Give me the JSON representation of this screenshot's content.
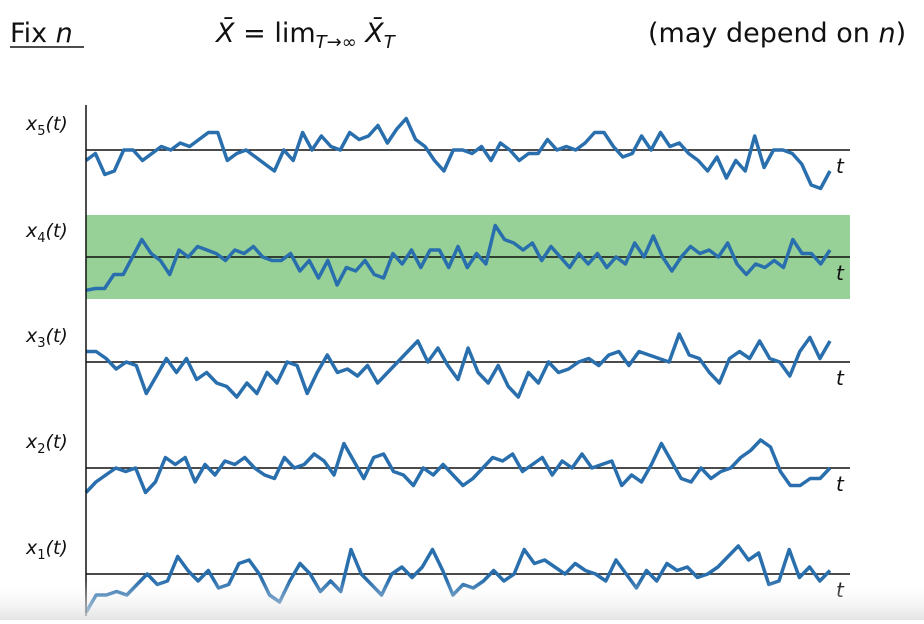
{
  "header": {
    "fix": {
      "word": "Fix",
      "var": "n"
    },
    "formula": {
      "lhs": "X̄",
      "eq": "=",
      "lim": "lim",
      "lim_sub": "T→∞",
      "rhs": "X̄",
      "rhs_sub": "T"
    },
    "note": {
      "before": "(may depend on ",
      "var": "n",
      "after": ")"
    }
  },
  "line_color": "#2a6fad",
  "highlight_color": "#97d197",
  "panels": [
    {
      "label": "x",
      "index": "5",
      "arg": "(t)",
      "axis": "t",
      "highlight": false,
      "values": [
        -0.3,
        -0.1,
        -0.7,
        -0.6,
        0,
        0,
        -0.3,
        -0.1,
        0.1,
        0,
        0.2,
        0.1,
        0.3,
        0.5,
        0.5,
        -0.3,
        -0.1,
        0,
        -0.2,
        -0.4,
        -0.6,
        0,
        -0.3,
        0.5,
        0,
        0.4,
        0.1,
        0,
        0.5,
        0.3,
        0.4,
        0.7,
        0.2,
        0.6,
        0.9,
        0.3,
        0.1,
        -0.3,
        -0.6,
        0,
        0,
        -0.1,
        0.1,
        -0.3,
        0.2,
        0,
        -0.3,
        -0.1,
        -0.1,
        0.3,
        0,
        0.1,
        0,
        0.2,
        0.5,
        0.5,
        0.1,
        -0.2,
        -0.1,
        0.4,
        0,
        0.5,
        0.1,
        0.2,
        -0.1,
        -0.3,
        -0.6,
        -0.2,
        -0.8,
        -0.3,
        -0.6,
        0.4,
        -0.5,
        0,
        0,
        -0.1,
        -0.4,
        -1,
        -1.1,
        -0.6
      ]
    },
    {
      "label": "x",
      "index": "4",
      "arg": "(t)",
      "axis": "t",
      "highlight": true,
      "values": [
        -0.95,
        -0.9,
        -0.9,
        -0.5,
        -0.5,
        0,
        0.5,
        0.1,
        -0.1,
        -0.5,
        0.2,
        0,
        0.3,
        0.2,
        0.1,
        -0.1,
        0.2,
        0.1,
        0.3,
        0,
        -0.1,
        -0.1,
        0.1,
        -0.4,
        -0.1,
        -0.6,
        -0.1,
        -0.8,
        -0.3,
        -0.4,
        -0.1,
        -0.5,
        -0.6,
        0.1,
        -0.2,
        0.2,
        -0.3,
        0.2,
        0.2,
        -0.3,
        0.3,
        -0.3,
        0.1,
        -0.2,
        0.9,
        0.5,
        0.4,
        0.2,
        0.4,
        -0.1,
        0.3,
        0,
        -0.3,
        0.1,
        -0.2,
        0.1,
        -0.3,
        0,
        -0.2,
        0.4,
        0,
        0.6,
        0,
        -0.4,
        0,
        0.3,
        0.1,
        0.2,
        0,
        0.4,
        -0.2,
        -0.5,
        -0.2,
        -0.3,
        -0.1,
        -0.3,
        0.5,
        0.1,
        0.1,
        -0.2,
        0.2
      ]
    },
    {
      "label": "x",
      "index": "3",
      "arg": "(t)",
      "axis": "t",
      "highlight": false,
      "values": [
        0.3,
        0.3,
        0.1,
        -0.2,
        0,
        -0.1,
        -0.9,
        -0.4,
        0.1,
        -0.3,
        0.1,
        -0.5,
        -0.3,
        -0.6,
        -0.7,
        -1,
        -0.6,
        -0.9,
        -0.3,
        -0.6,
        0,
        -0.1,
        -0.9,
        -0.3,
        0.2,
        -0.3,
        -0.2,
        -0.4,
        -0.1,
        -0.6,
        -0.3,
        0,
        0.3,
        0.6,
        0,
        0.4,
        -0.1,
        -0.5,
        0.4,
        -0.3,
        -0.6,
        -0.1,
        -0.7,
        -1,
        -0.3,
        -0.6,
        0,
        -0.3,
        -0.2,
        0,
        0.1,
        -0.1,
        0.2,
        0.3,
        -0.1,
        0.3,
        0.2,
        0.1,
        0,
        0.8,
        0.2,
        0.1,
        -0.3,
        -0.6,
        0.1,
        0.3,
        0.1,
        0.6,
        0.1,
        0,
        -0.4,
        0.3,
        0.7,
        0.1,
        0.6
      ]
    },
    {
      "label": "x",
      "index": "2",
      "arg": "(t)",
      "axis": "t",
      "highlight": false,
      "values": [
        -0.7,
        -0.4,
        -0.2,
        0,
        -0.1,
        0,
        -0.7,
        -0.4,
        0.3,
        0.1,
        0.3,
        -0.4,
        0.1,
        -0.2,
        0.2,
        0.1,
        0.3,
        0,
        -0.2,
        -0.3,
        0.3,
        0,
        0.1,
        0.4,
        0.2,
        -0.2,
        0.7,
        0.2,
        -0.3,
        0.3,
        0.4,
        -0.1,
        -0.2,
        -0.5,
        0,
        -0.2,
        0.1,
        -0.2,
        -0.5,
        -0.3,
        0,
        0.3,
        0.2,
        0.4,
        -0.1,
        0.1,
        0.3,
        -0.2,
        0.2,
        0,
        0.4,
        0,
        0.1,
        0.2,
        -0.5,
        -0.2,
        -0.4,
        0.1,
        0.7,
        0.2,
        -0.3,
        -0.4,
        0,
        -0.3,
        -0.1,
        0,
        0.3,
        0.5,
        0.8,
        0.6,
        -0.1,
        -0.5,
        -0.5,
        -0.3,
        -0.3,
        0
      ]
    },
    {
      "label": "x",
      "index": "1",
      "arg": "(t)",
      "axis": "t",
      "highlight": false,
      "values": [
        -1.1,
        -0.6,
        -0.6,
        -0.5,
        -0.6,
        -0.3,
        0,
        -0.3,
        -0.2,
        0.5,
        0.1,
        -0.2,
        0.1,
        -0.4,
        -0.3,
        0.3,
        0.4,
        0,
        -0.6,
        -0.8,
        -0.2,
        0.3,
        0,
        -0.5,
        -0.2,
        -0.5,
        0.7,
        0,
        -0.3,
        -0.6,
        0,
        0.2,
        -0.1,
        0.2,
        0.7,
        0.1,
        -0.6,
        -0.3,
        -0.4,
        -0.2,
        0.1,
        -0.2,
        0,
        0.7,
        0.3,
        0.4,
        0.2,
        0,
        0.3,
        0.1,
        0,
        -0.2,
        0.4,
        0,
        -0.4,
        0.1,
        -0.2,
        0.3,
        0.1,
        0.2,
        -0.1,
        0,
        0.2,
        0.5,
        0.8,
        0.4,
        0.6,
        -0.3,
        -0.2,
        0.7,
        -0.1,
        0.2,
        -0.2,
        0.1
      ]
    }
  ]
}
